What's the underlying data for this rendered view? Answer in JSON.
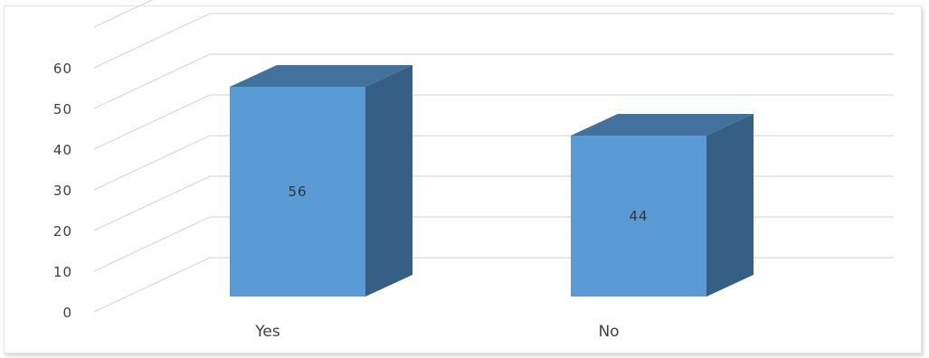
{
  "chart_data": {
    "type": "bar",
    "categories": [
      "Yes",
      "No"
    ],
    "values": [
      56,
      44
    ],
    "data_labels": [
      "56",
      "44"
    ],
    "yticks": [
      0,
      10,
      20,
      30,
      40,
      50,
      60
    ],
    "ylim": [
      0,
      70
    ],
    "grid": true,
    "style": "3d-column",
    "colors": {
      "front": "#5b9bd5",
      "top": "#41719c",
      "side": "#355f84",
      "grid": "#d9d9d9",
      "text": "#404040"
    }
  }
}
